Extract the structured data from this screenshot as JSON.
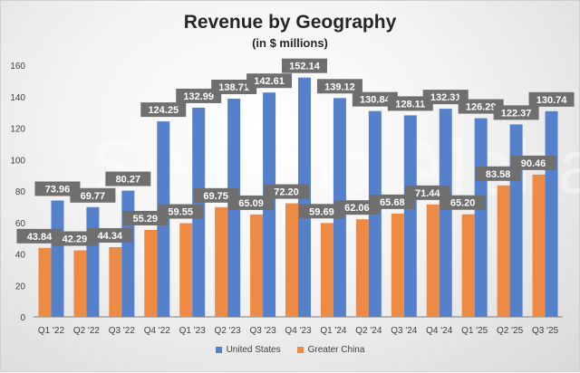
{
  "chart_data": {
    "type": "bar",
    "title": "Revenue by Geography",
    "subtitle": "(in $ millions)",
    "watermark": "Seeking Alpha",
    "xlabel": "",
    "ylabel": "",
    "ylim": [
      0,
      160
    ],
    "yticks": [
      0,
      20,
      40,
      60,
      80,
      100,
      120,
      140,
      160
    ],
    "categories": [
      "Q1 '22",
      "Q2 '22",
      "Q3 '22",
      "Q4 '22",
      "Q1 '23",
      "Q2 '23",
      "Q3 '23",
      "Q4 '23",
      "Q1 '24",
      "Q2 '24",
      "Q3 '24",
      "Q4 '24",
      "Q1 '25",
      "Q2 '25",
      "Q3 '25"
    ],
    "series": [
      {
        "name": "Greater China",
        "color": "#ed8b45",
        "values": [
          43.84,
          42.29,
          44.34,
          55.29,
          59.55,
          69.75,
          65.09,
          72.2,
          59.69,
          62.06,
          65.68,
          71.44,
          65.2,
          83.58,
          90.46
        ]
      },
      {
        "name": "United States",
        "color": "#5580cc",
        "values": [
          73.96,
          69.77,
          80.27,
          124.25,
          132.99,
          138.71,
          142.61,
          152.14,
          139.12,
          130.84,
          128.11,
          132.31,
          126.29,
          122.37,
          130.74
        ]
      }
    ],
    "legend": {
      "placement": "bottom",
      "order": [
        "United States",
        "Greater China"
      ]
    },
    "label_box_color": "#6f6f6f"
  }
}
